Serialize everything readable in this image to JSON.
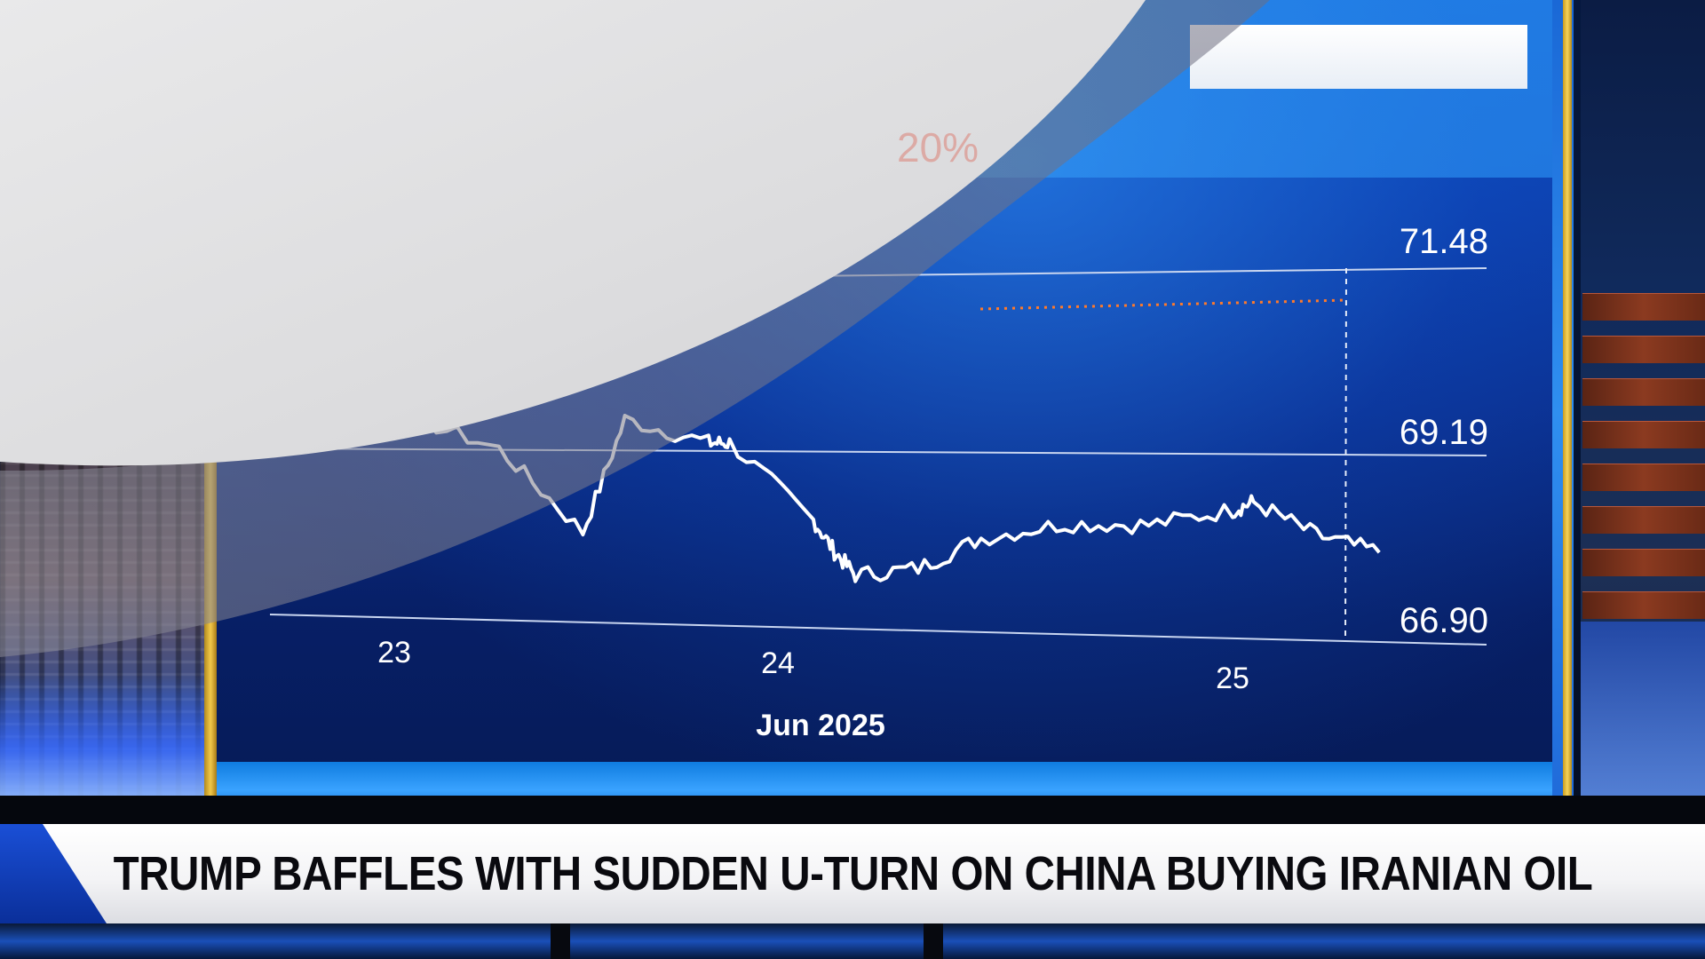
{
  "chart": {
    "y_tick_labels": [
      "71.48",
      "69.19",
      "66.90"
    ],
    "x_tick_labels": [
      "23",
      "24",
      "25"
    ],
    "x_axis_caption": "Jun 2025",
    "obscured_label": "20%",
    "series_color": "#ffffff",
    "reference_line_color": "#ff7a2a"
  },
  "chart_data": {
    "type": "line",
    "x_label": "Jun 2025",
    "ylim": [
      66.9,
      71.48
    ],
    "y_ticks": [
      66.9,
      69.19,
      71.48
    ],
    "x_ticks": [
      "23",
      "24",
      "25"
    ],
    "series": [
      {
        "x": [
          22.62,
          22.8,
          23.0,
          23.25,
          23.45,
          23.55,
          23.75,
          23.8,
          24.0,
          24.05,
          24.1,
          24.25,
          24.4,
          24.6,
          24.8,
          25.0,
          25.05,
          25.2,
          25.35
        ],
        "y": [
          69.3,
          69.6,
          69.7,
          69.2,
          68.1,
          69.6,
          69.3,
          69.3,
          68.3,
          67.9,
          67.6,
          67.7,
          68.1,
          68.3,
          68.3,
          68.5,
          68.6,
          68.2,
          68.0
        ]
      }
    ],
    "reference_line": {
      "y": 71.05,
      "style": "dotted"
    },
    "grid": true
  },
  "headline": {
    "text": "TRUMP BAFFLES WITH SUDDEN U-TURN ON CHINA BUYING IRANIAN OIL"
  },
  "colors": {
    "ticker_background": "#ffffff",
    "headline_text": "#0a0a0f",
    "screen_blue": "#0b3da8",
    "frame_gold": "#f2c84a"
  }
}
